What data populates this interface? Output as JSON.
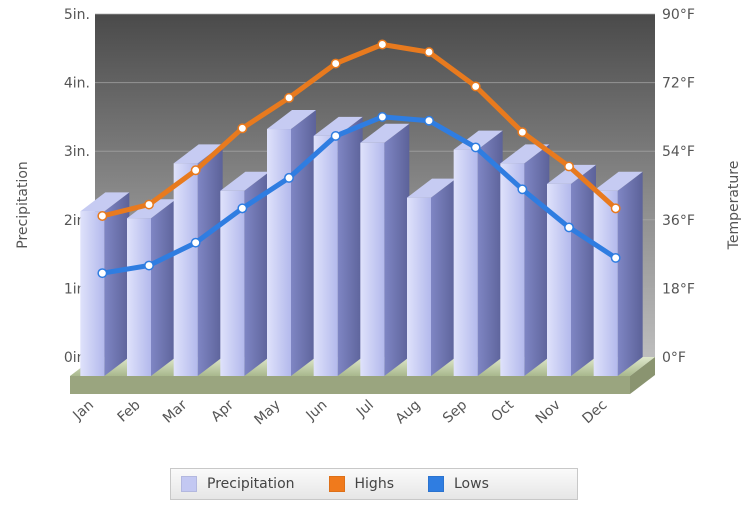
{
  "chart_data": {
    "type": "bar",
    "categories": [
      "Jan",
      "Feb",
      "Mar",
      "Apr",
      "May",
      "Jun",
      "Jul",
      "Aug",
      "Sep",
      "Oct",
      "Nov",
      "Dec"
    ],
    "series": [
      {
        "name": "Precipitation",
        "type": "bar",
        "axis": "left",
        "unit": "in.",
        "values": [
          2.4,
          2.3,
          3.1,
          2.7,
          3.6,
          3.5,
          3.4,
          2.6,
          3.3,
          3.1,
          2.8,
          2.7
        ]
      },
      {
        "name": "Highs",
        "type": "line",
        "axis": "right",
        "unit": "°F",
        "values": [
          37,
          40,
          49,
          60,
          68,
          77,
          82,
          80,
          71,
          59,
          50,
          39
        ]
      },
      {
        "name": "Lows",
        "type": "line",
        "axis": "right",
        "unit": "°F",
        "values": [
          22,
          24,
          30,
          39,
          47,
          58,
          63,
          62,
          55,
          44,
          34,
          26
        ]
      }
    ],
    "ylabel_left": "Precipitation",
    "ylabel_right": "Temperature",
    "ylim_left": [
      0,
      5
    ],
    "ylim_right": [
      0,
      90
    ],
    "yticks_left": [
      "0in.",
      "1in.",
      "2in.",
      "3in.",
      "4in.",
      "5in."
    ],
    "yticks_right": [
      "0°F",
      "18°F",
      "36°F",
      "54°F",
      "72°F",
      "90°F"
    ],
    "grid": true,
    "legend_position": "bottom",
    "colors": {
      "Precipitation": "#b8bff0",
      "Highs": "#e87a1e",
      "Lows": "#2f7de1"
    }
  },
  "legend": {
    "items": [
      {
        "label": "Precipitation",
        "color": "#c3c8f2"
      },
      {
        "label": "Highs",
        "color": "#f07a1c"
      },
      {
        "label": "Lows",
        "color": "#2f7de1"
      }
    ]
  }
}
